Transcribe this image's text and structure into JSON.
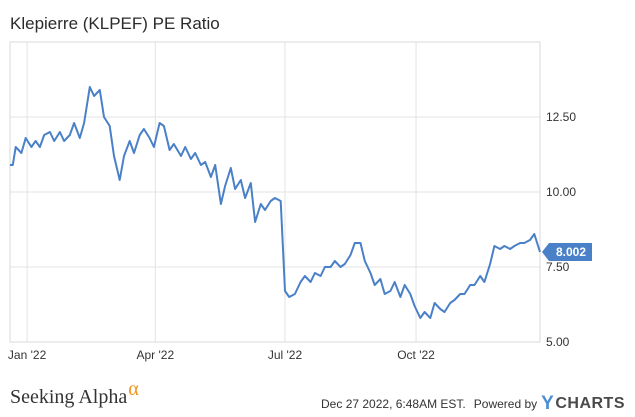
{
  "chart_data": {
    "type": "line",
    "title": "Klepierre (KLPEF) PE Ratio",
    "xlabel": "",
    "ylabel": "",
    "x_ticks": [
      "Jan '22",
      "Apr '22",
      "Jul '22",
      "Oct '22"
    ],
    "x_tick_dates": [
      "2022-01-01",
      "2022-04-01",
      "2022-07-01",
      "2022-10-01"
    ],
    "x_range": [
      "2021-12-20",
      "2022-12-27"
    ],
    "y_ticks": [
      "5.00",
      "7.50",
      "10.00",
      "12.50"
    ],
    "ylim": [
      5.0,
      15.0
    ],
    "grid": true,
    "last_value_label": "8.002",
    "series": [
      {
        "color": "#4a80c8",
        "x": [
          "2021-12-20",
          "2021-12-22",
          "2021-12-24",
          "2021-12-28",
          "2021-12-31",
          "2022-01-04",
          "2022-01-07",
          "2022-01-10",
          "2022-01-13",
          "2022-01-17",
          "2022-01-20",
          "2022-01-24",
          "2022-01-27",
          "2022-01-31",
          "2022-02-03",
          "2022-02-07",
          "2022-02-10",
          "2022-02-14",
          "2022-02-17",
          "2022-02-21",
          "2022-02-24",
          "2022-02-28",
          "2022-03-03",
          "2022-03-07",
          "2022-03-10",
          "2022-03-14",
          "2022-03-17",
          "2022-03-21",
          "2022-03-24",
          "2022-03-28",
          "2022-03-31",
          "2022-04-04",
          "2022-04-07",
          "2022-04-11",
          "2022-04-14",
          "2022-04-19",
          "2022-04-22",
          "2022-04-26",
          "2022-04-29",
          "2022-05-03",
          "2022-05-06",
          "2022-05-10",
          "2022-05-13",
          "2022-05-17",
          "2022-05-20",
          "2022-05-24",
          "2022-05-27",
          "2022-05-31",
          "2022-06-03",
          "2022-06-07",
          "2022-06-10",
          "2022-06-14",
          "2022-06-17",
          "2022-06-21",
          "2022-06-24",
          "2022-06-28",
          "2022-07-01",
          "2022-07-04",
          "2022-07-08",
          "2022-07-12",
          "2022-07-15",
          "2022-07-19",
          "2022-07-22",
          "2022-07-26",
          "2022-07-29",
          "2022-08-02",
          "2022-08-05",
          "2022-08-09",
          "2022-08-12",
          "2022-08-16",
          "2022-08-19",
          "2022-08-23",
          "2022-08-26",
          "2022-08-30",
          "2022-09-02",
          "2022-09-06",
          "2022-09-09",
          "2022-09-13",
          "2022-09-16",
          "2022-09-20",
          "2022-09-23",
          "2022-09-27",
          "2022-09-30",
          "2022-10-04",
          "2022-10-07",
          "2022-10-11",
          "2022-10-14",
          "2022-10-18",
          "2022-10-21",
          "2022-10-25",
          "2022-10-28",
          "2022-11-01",
          "2022-11-04",
          "2022-11-08",
          "2022-11-11",
          "2022-11-15",
          "2022-11-18",
          "2022-11-22",
          "2022-11-25",
          "2022-11-29",
          "2022-12-02",
          "2022-12-06",
          "2022-12-09",
          "2022-12-13",
          "2022-12-16",
          "2022-12-20",
          "2022-12-23",
          "2022-12-27"
        ],
        "y": [
          10.9,
          10.9,
          11.5,
          11.3,
          11.8,
          11.5,
          11.7,
          11.5,
          11.9,
          12.0,
          11.7,
          12.0,
          11.7,
          11.9,
          12.3,
          11.8,
          12.3,
          13.5,
          13.2,
          13.4,
          12.5,
          12.2,
          11.2,
          10.4,
          11.2,
          11.7,
          11.3,
          11.9,
          12.1,
          11.8,
          11.5,
          12.3,
          12.2,
          11.4,
          11.6,
          11.2,
          11.5,
          11.1,
          11.3,
          10.9,
          11.0,
          10.5,
          10.9,
          9.6,
          10.2,
          10.8,
          10.1,
          10.4,
          9.8,
          10.3,
          9.0,
          9.6,
          9.4,
          9.7,
          9.8,
          9.7,
          6.7,
          6.5,
          6.6,
          7.0,
          7.2,
          7.0,
          7.3,
          7.2,
          7.5,
          7.5,
          7.7,
          7.5,
          7.6,
          7.9,
          8.3,
          8.3,
          7.7,
          7.3,
          6.9,
          7.1,
          6.6,
          6.7,
          7.0,
          6.5,
          6.9,
          6.6,
          6.2,
          5.8,
          6.0,
          5.8,
          6.3,
          6.1,
          6.0,
          6.3,
          6.4,
          6.6,
          6.6,
          6.9,
          6.9,
          7.2,
          7.0,
          7.6,
          8.2,
          8.1,
          8.2,
          8.1,
          8.2,
          8.3,
          8.3,
          8.4,
          8.6,
          8.0
        ]
      }
    ]
  },
  "footer": {
    "brand": "Seeking Alpha",
    "brand_symbol": "α",
    "timestamp": "Dec 27 2022, 6:48AM EST.",
    "powered_by": "Powered by",
    "logo_y": "Y",
    "logo_text": "CHARTS"
  }
}
